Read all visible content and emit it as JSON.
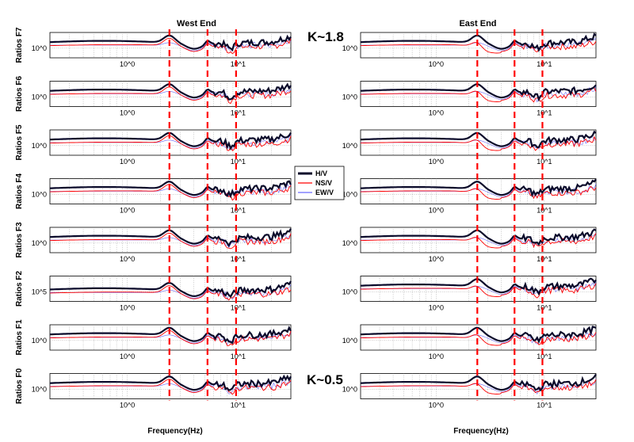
{
  "chart_data": {
    "type": "line",
    "x_scale": "log",
    "x_unit": "Hz",
    "xlabel": "Frequency(Hz)",
    "x_tick_labels": [
      "10^0",
      "10^1"
    ],
    "columns": [
      {
        "title": "West End",
        "key": "west"
      },
      {
        "title": "East End",
        "key": "east"
      }
    ],
    "rows": [
      {
        "ylabel": "Ratios F7",
        "ytick": "10^0"
      },
      {
        "ylabel": "Ratios F6",
        "ytick": "10^0"
      },
      {
        "ylabel": "Ratios F5",
        "ytick": "10^0"
      },
      {
        "ylabel": "Ratios F4",
        "ytick": "10^0"
      },
      {
        "ylabel": "Ratios F3",
        "ytick": "10^0"
      },
      {
        "ylabel": "Ratios F2",
        "ytick": "10^5",
        "ytick_east": "10^0"
      },
      {
        "ylabel": "Ratios F1",
        "ytick": "10^0"
      },
      {
        "ylabel": "Ratios F0",
        "ytick": "10^0"
      }
    ],
    "series": [
      {
        "name": "H/V",
        "color": "#0a0a2a"
      },
      {
        "name": "NS/V",
        "color": "#ff0000"
      },
      {
        "name": "EW/V",
        "color": "#6a6aff"
      }
    ],
    "reference_lines_hz": [
      2.4,
      5.3,
      9.6
    ],
    "reference_line_color": "#ff0000",
    "annotations": [
      "K~1.8",
      "K~0.5"
    ],
    "legend_position": "center"
  }
}
